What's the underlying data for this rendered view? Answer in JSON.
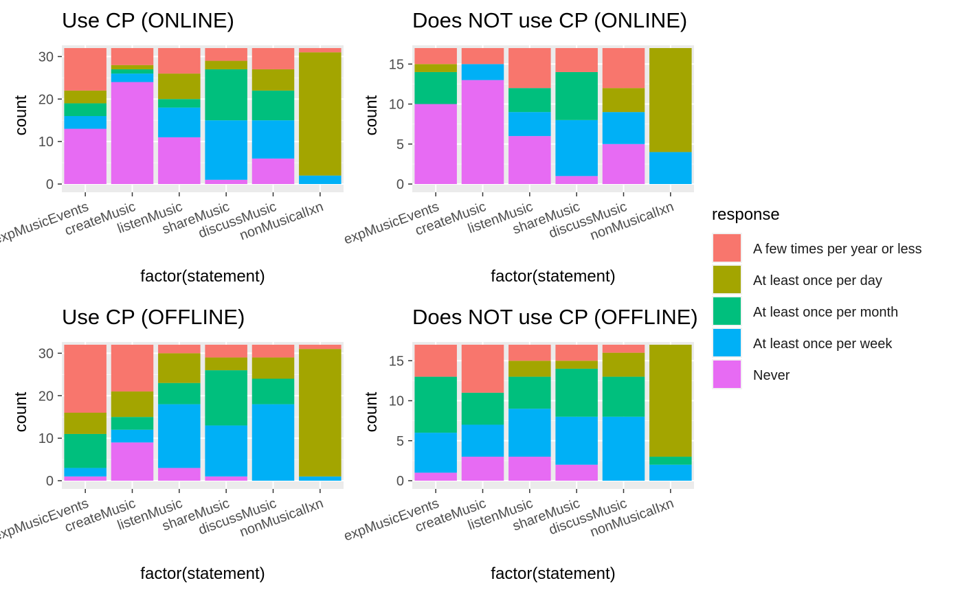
{
  "legend": {
    "title": "response",
    "items": [
      {
        "label": "A few times per year or less",
        "color": "#F8766D"
      },
      {
        "label": "At least once per day",
        "color": "#A3A500"
      },
      {
        "label": "At least once per month",
        "color": "#00BF7D"
      },
      {
        "label": "At least once per week",
        "color": "#00B0F6"
      },
      {
        "label": "Never",
        "color": "#E76BF3"
      }
    ]
  },
  "chart_data": [
    {
      "type": "bar",
      "stacked": true,
      "title": "Use CP (ONLINE)",
      "xlabel": "factor(statement)",
      "ylabel": "count",
      "ylim": [
        0,
        32
      ],
      "yticks": [
        0,
        10,
        20,
        30
      ],
      "categories": [
        "expMusicEvents",
        "createMusic",
        "listenMusic",
        "shareMusic",
        "discussMusic",
        "nonMusicalIxn"
      ],
      "series": [
        {
          "name": "Never",
          "values": [
            13,
            24,
            11,
            1,
            6,
            0
          ]
        },
        {
          "name": "At least once per week",
          "values": [
            3,
            2,
            7,
            14,
            9,
            2
          ]
        },
        {
          "name": "At least once per month",
          "values": [
            3,
            1,
            2,
            12,
            7,
            0
          ]
        },
        {
          "name": "At least once per day",
          "values": [
            3,
            1,
            6,
            2,
            5,
            29
          ]
        },
        {
          "name": "A few times per year or less",
          "values": [
            10,
            4,
            6,
            3,
            5,
            1
          ]
        }
      ]
    },
    {
      "type": "bar",
      "stacked": true,
      "title": "Does NOT use CP (ONLINE)",
      "xlabel": "factor(statement)",
      "ylabel": "count",
      "ylim": [
        0,
        17
      ],
      "yticks": [
        0,
        5,
        10,
        15
      ],
      "categories": [
        "expMusicEvents",
        "createMusic",
        "listenMusic",
        "shareMusic",
        "discussMusic",
        "nonMusicalIxn"
      ],
      "series": [
        {
          "name": "Never",
          "values": [
            10,
            13,
            6,
            1,
            5,
            0
          ]
        },
        {
          "name": "At least once per week",
          "values": [
            0,
            2,
            3,
            7,
            4,
            4
          ]
        },
        {
          "name": "At least once per month",
          "values": [
            4,
            0,
            3,
            6,
            0,
            0
          ]
        },
        {
          "name": "At least once per day",
          "values": [
            1,
            0,
            0,
            0,
            3,
            13
          ]
        },
        {
          "name": "A few times per year or less",
          "values": [
            2,
            2,
            5,
            3,
            5,
            0
          ]
        }
      ]
    },
    {
      "type": "bar",
      "stacked": true,
      "title": "Use CP (OFFLINE)",
      "xlabel": "factor(statement)",
      "ylabel": "count",
      "ylim": [
        0,
        32
      ],
      "yticks": [
        0,
        10,
        20,
        30
      ],
      "categories": [
        "expMusicEvents",
        "createMusic",
        "listenMusic",
        "shareMusic",
        "discussMusic",
        "nonMusicalIxn"
      ],
      "series": [
        {
          "name": "Never",
          "values": [
            1,
            9,
            3,
            1,
            0,
            0
          ]
        },
        {
          "name": "At least once per week",
          "values": [
            2,
            3,
            15,
            12,
            18,
            1
          ]
        },
        {
          "name": "At least once per month",
          "values": [
            8,
            3,
            5,
            13,
            6,
            0
          ]
        },
        {
          "name": "At least once per day",
          "values": [
            5,
            6,
            7,
            3,
            5,
            30
          ]
        },
        {
          "name": "A few times per year or less",
          "values": [
            16,
            11,
            2,
            3,
            3,
            1
          ]
        }
      ]
    },
    {
      "type": "bar",
      "stacked": true,
      "title": "Does NOT use CP (OFFLINE)",
      "xlabel": "factor(statement)",
      "ylabel": "count",
      "ylim": [
        0,
        17
      ],
      "yticks": [
        0,
        5,
        10,
        15
      ],
      "categories": [
        "expMusicEvents",
        "createMusic",
        "listenMusic",
        "shareMusic",
        "discussMusic",
        "nonMusicalIxn"
      ],
      "series": [
        {
          "name": "Never",
          "values": [
            1,
            3,
            3,
            2,
            0,
            0
          ]
        },
        {
          "name": "At least once per week",
          "values": [
            5,
            4,
            6,
            6,
            8,
            2
          ]
        },
        {
          "name": "At least once per month",
          "values": [
            7,
            4,
            4,
            6,
            5,
            1
          ]
        },
        {
          "name": "At least once per day",
          "values": [
            0,
            0,
            2,
            1,
            3,
            14
          ]
        },
        {
          "name": "A few times per year or less",
          "values": [
            4,
            6,
            2,
            2,
            1,
            0
          ]
        }
      ]
    }
  ]
}
